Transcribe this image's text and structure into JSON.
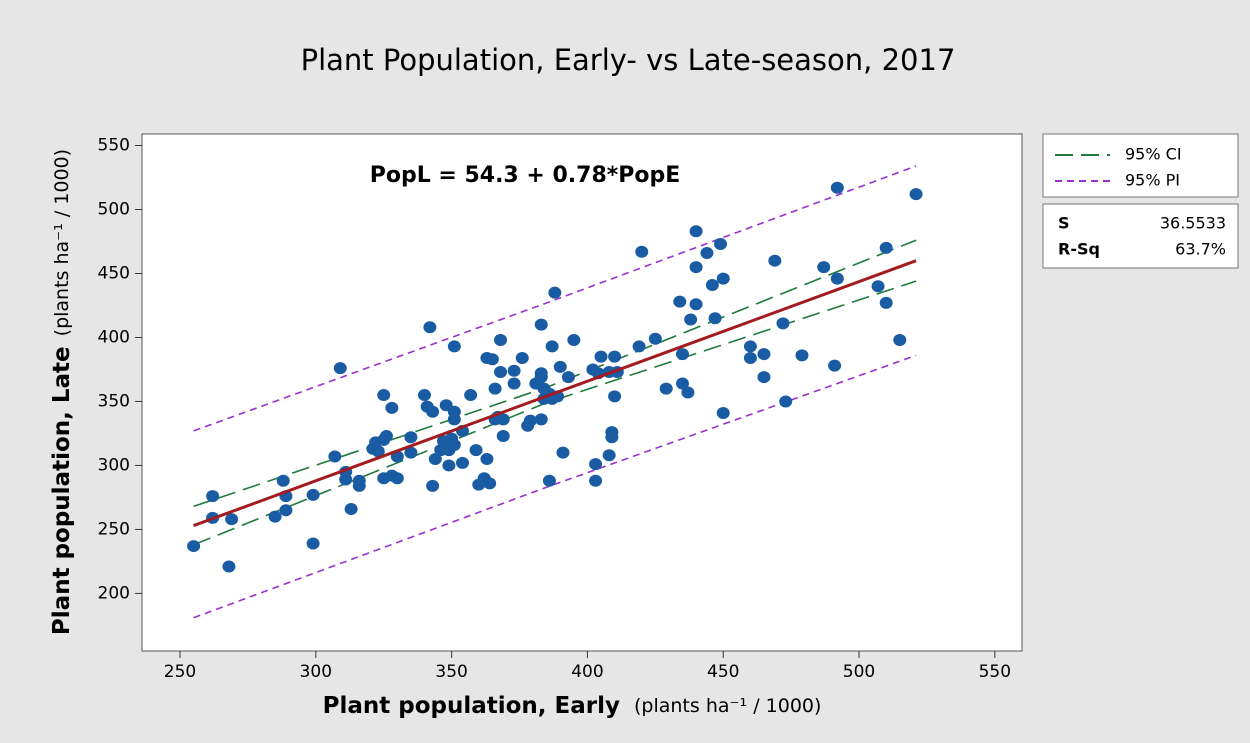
{
  "chart_data": {
    "type": "scatter",
    "title": "Plant Population, Early- vs Late-season, 2017",
    "x_label": "Plant population, Early",
    "x_label_units": "(plants ha⁻¹ / 1000)",
    "y_label": "Plant population, Late",
    "y_label_units": "(plants ha⁻¹ / 1000)",
    "annotation": "PopL = 54.3 + 0.78*PopE",
    "xlim": [
      236,
      560
    ],
    "ylim": [
      155,
      559
    ],
    "xticks": [
      250,
      300,
      350,
      400,
      450,
      500,
      550
    ],
    "yticks": [
      200,
      250,
      300,
      350,
      400,
      450,
      500,
      550
    ],
    "points": {
      "color": "#1a5ca3",
      "x": [
        255,
        262,
        262,
        269,
        268,
        285,
        288,
        289,
        289,
        299,
        299,
        307,
        309,
        311,
        311,
        313,
        316,
        316,
        321,
        322,
        323,
        325,
        325,
        326,
        325,
        328,
        328,
        330,
        330,
        335,
        335,
        340,
        341,
        342,
        343,
        343,
        344,
        346,
        347,
        348,
        349,
        349,
        350,
        351,
        351,
        351,
        351,
        354,
        354,
        357,
        359,
        360,
        363,
        362,
        363,
        364,
        365,
        366,
        366,
        367,
        368,
        368,
        369,
        369,
        373,
        373,
        376,
        378,
        379,
        381,
        383,
        383,
        383,
        383,
        384,
        384,
        386,
        386,
        387,
        387,
        388,
        389,
        390,
        391,
        393,
        395,
        402,
        403,
        403,
        404,
        405,
        408,
        408,
        409,
        409,
        410,
        410,
        411,
        419,
        420,
        425,
        429,
        434,
        435,
        435,
        437,
        438,
        440,
        440,
        440,
        444,
        446,
        447,
        449,
        450,
        450,
        460,
        460,
        465,
        465,
        469,
        472,
        473,
        479,
        487,
        491,
        492,
        492,
        507,
        510,
        510,
        515,
        521
      ],
      "y": [
        237,
        276,
        259,
        258,
        221,
        260,
        288,
        276,
        265,
        277,
        239,
        307,
        376,
        295,
        289,
        266,
        284,
        288,
        313,
        318,
        311,
        355,
        320,
        323,
        290,
        345,
        292,
        307,
        290,
        322,
        310,
        355,
        346,
        408,
        284,
        342,
        305,
        312,
        319,
        347,
        300,
        312,
        321,
        393,
        336,
        342,
        316,
        302,
        327,
        355,
        312,
        285,
        305,
        290,
        384,
        286,
        383,
        336,
        360,
        338,
        398,
        373,
        323,
        336,
        364,
        374,
        384,
        331,
        335,
        364,
        410,
        372,
        369,
        336,
        352,
        360,
        356,
        288,
        393,
        352,
        435,
        354,
        377,
        310,
        369,
        398,
        375,
        288,
        301,
        372,
        385,
        373,
        308,
        326,
        322,
        385,
        354,
        373,
        393,
        467,
        399,
        360,
        428,
        387,
        364,
        357,
        414,
        483,
        455,
        426,
        466,
        441,
        415,
        473,
        446,
        341,
        384,
        393,
        387,
        369,
        460,
        411,
        350,
        386,
        455,
        378,
        446,
        517,
        440,
        470,
        427,
        398,
        512
      ]
    },
    "fit": {
      "color": "#a31a1f",
      "x": [
        255,
        521
      ],
      "values": [
        253,
        460
      ]
    },
    "series": [
      {
        "name": "95% CI",
        "color": "#1e7a3c",
        "x": [
          255,
          385,
          521
        ],
        "upper": [
          268,
          361,
          476
        ],
        "lower": [
          238,
          349,
          444
        ]
      },
      {
        "name": "95% PI",
        "color": "#9b30d0",
        "x": [
          255,
          385,
          521
        ],
        "upper": [
          327,
          427,
          534
        ],
        "lower": [
          181,
          283,
          386
        ]
      }
    ],
    "stats": [
      {
        "label": "S",
        "value": "36.5533"
      },
      {
        "label": "R-Sq",
        "value": "63.7%"
      }
    ]
  }
}
